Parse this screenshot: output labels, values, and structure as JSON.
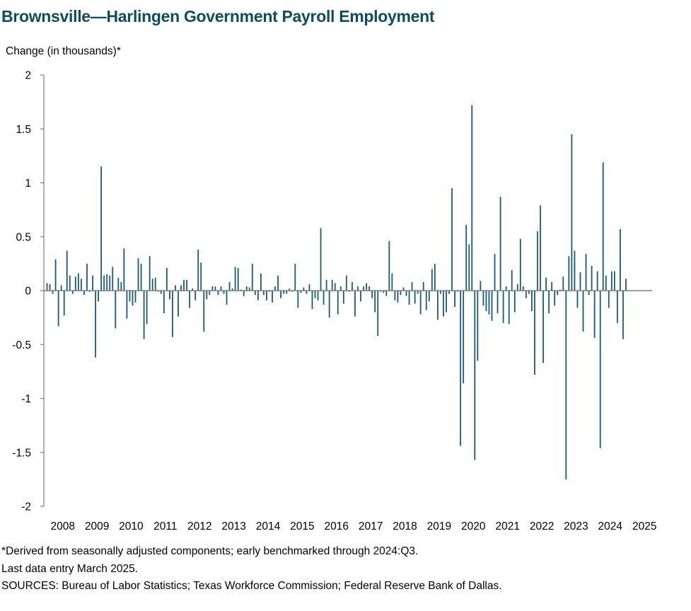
{
  "chart_data": {
    "type": "bar",
    "title": "Brownsville—Harlingen Government Payroll Employment",
    "ylabel": "Change (in thousands)*",
    "xlabel": "",
    "ylim": [
      -2,
      2
    ],
    "yticks": [
      -2,
      -1.5,
      -1,
      -0.5,
      0,
      0.5,
      1,
      1.5,
      2
    ],
    "ytick_labels": [
      "-2",
      "-1.5",
      "-1",
      "-0.5",
      "0",
      "0.5",
      "1",
      "1.5",
      "2"
    ],
    "x_tick_labels": [
      "2008",
      "2009",
      "2010",
      "2011",
      "2012",
      "2013",
      "2014",
      "2015",
      "2016",
      "2017",
      "2018",
      "2019",
      "2020",
      "2021",
      "2022",
      "2023",
      "2024",
      "2025"
    ],
    "start": "2008-01",
    "end": "2025-03",
    "bar_color": "#1c5a73",
    "grid": false,
    "series": [
      {
        "values": [
          0.07,
          0.06,
          -0.03,
          0.29,
          -0.33,
          0.05,
          -0.23,
          0.37,
          0.14,
          -0.03,
          0.13,
          0.16,
          0.11,
          -0.04,
          0.25,
          -0.01,
          0.14,
          -0.62,
          -0.1,
          1.15,
          0.14,
          0.15,
          0.14,
          0.22,
          -0.35,
          0.12,
          0.08,
          0.39,
          -0.26,
          -0.1,
          -0.14,
          -0.11,
          0.3,
          0.25,
          -0.45,
          -0.31,
          0.32,
          0.11,
          0.12,
          -0.01,
          -0.03,
          -0.21,
          0.21,
          -0.08,
          -0.43,
          0.05,
          -0.24,
          0.05,
          0.1,
          0.1,
          -0.16,
          0.02,
          -0.09,
          0.38,
          0.26,
          -0.38,
          -0.08,
          -0.04,
          0.04,
          0.04,
          -0.04,
          0.04,
          -0.03,
          -0.13,
          0.08,
          0.02,
          0.22,
          0.21,
          0.01,
          -0.05,
          0.04,
          0.03,
          0.25,
          -0.04,
          -0.09,
          0.16,
          -0.04,
          -0.09,
          -0.01,
          -0.11,
          0.04,
          0.14,
          -0.07,
          -0.03,
          -0.03,
          0.02,
          -0.01,
          0.25,
          -0.16,
          -0.02,
          0.03,
          -0.03,
          0.06,
          -0.17,
          -0.07,
          -0.09,
          0.58,
          -0.13,
          0.1,
          -0.25,
          0.1,
          0.07,
          -0.22,
          0.04,
          -0.12,
          0.14,
          -0.01,
          0.08,
          -0.24,
          0.04,
          -0.1,
          0.04,
          0.07,
          0.04,
          -0.07,
          -0.2,
          -0.42,
          -0.01,
          -0.02,
          -0.05,
          0.46,
          0.16,
          -0.09,
          -0.11,
          -0.04,
          0.03,
          -0.05,
          -0.13,
          0.08,
          -0.12,
          -0.03,
          -0.22,
          0.08,
          -0.18,
          -0.1,
          0.2,
          0.25,
          -0.27,
          -0.03,
          -0.24,
          -0.2,
          -0.03,
          0.95,
          -0.15,
          -0.01,
          -1.44,
          -0.86,
          0.61,
          0.43,
          1.72,
          -1.57,
          -0.65,
          0.09,
          -0.14,
          -0.19,
          -0.22,
          -0.28,
          0.34,
          -0.21,
          0.87,
          -0.3,
          0.04,
          -0.31,
          0.19,
          -0.2,
          0.06,
          0.48,
          0.04,
          -0.07,
          -0.03,
          -0.19,
          -0.78,
          0.55,
          0.79,
          -0.67,
          0.12,
          -0.21,
          0.08,
          -0.14,
          -0.04,
          0.01,
          0.13,
          -1.75,
          0.32,
          1.45,
          0.37,
          -0.16,
          0.17,
          -0.38,
          0.34,
          -0.04,
          0.23,
          -0.44,
          0.18,
          -1.46,
          1.19,
          0.14,
          -0.16,
          0.18,
          0.18,
          -0.3,
          0.57,
          -0.45,
          0.11
        ]
      }
    ]
  },
  "footnotes": {
    "line1": "*Derived from seasonally adjusted components; early benchmarked through 2024:Q3.",
    "line2": "Last data entry March 2025.",
    "line3": "SOURCES: Bureau of Labor Statistics; Texas Workforce Commission; Federal Reserve Bank of Dallas."
  }
}
